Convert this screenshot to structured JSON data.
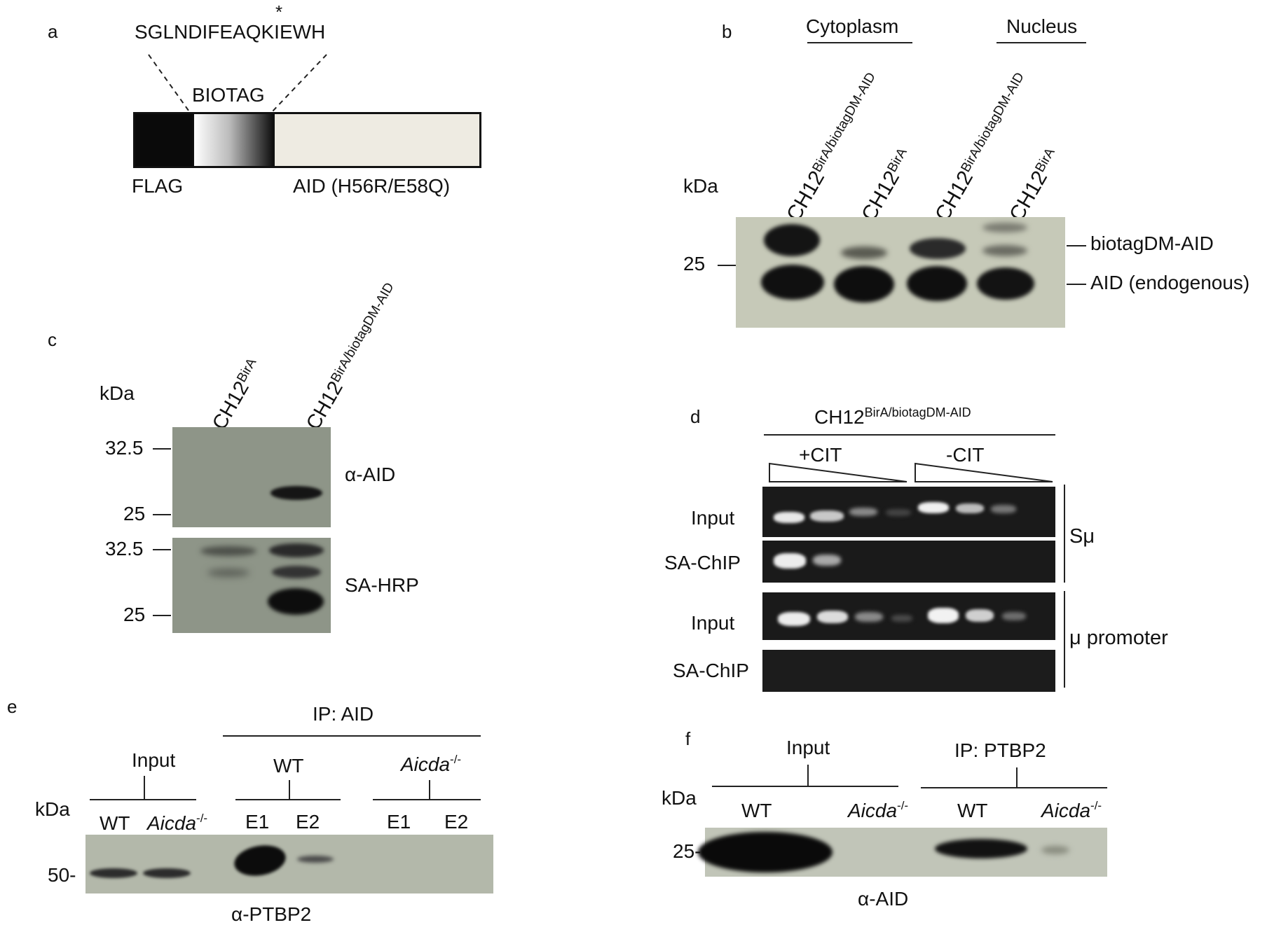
{
  "panel_letters": {
    "a": "a",
    "b": "b",
    "c": "c",
    "d": "d",
    "e": "e",
    "f": "f"
  },
  "panel_a": {
    "sequence": "SGLNDIFEAQKIEWH",
    "asterisk": "*",
    "tag_label": "BIOTAG",
    "flag_label": "FLAG",
    "aid_label": "AID (H56R/E58Q)"
  },
  "panel_b": {
    "groups": [
      "Cytoplasm",
      "Nucleus"
    ],
    "lanes": [
      {
        "base": "CH12",
        "sup": "BirA/biotagDM-AID"
      },
      {
        "base": "CH12",
        "sup": "BirA"
      },
      {
        "base": "CH12",
        "sup": "BirA/biotagDM-AID"
      },
      {
        "base": "CH12",
        "sup": "BirA"
      }
    ],
    "kda": "kDa",
    "marker": "25",
    "bands": [
      "biotagDM-AID",
      "AID (endogenous)"
    ]
  },
  "panel_c": {
    "kda": "kDa",
    "lanes": [
      {
        "base": "CH12",
        "sup": "BirA"
      },
      {
        "base": "CH12",
        "sup": "BirA/biotagDM-AID"
      }
    ],
    "markers_top": [
      "32.5",
      "25"
    ],
    "markers_bottom": [
      "32.5",
      "25"
    ],
    "blot_labels": [
      "α-AID",
      "SA-HRP"
    ]
  },
  "panel_d": {
    "header_base": "CH12",
    "header_sup": "BirA/biotagDM-AID",
    "conditions": [
      "+CIT",
      "-CIT"
    ],
    "rows": [
      "Input",
      "SA-ChIP",
      "Input",
      "SA-ChIP"
    ],
    "regions": [
      "Sμ",
      "μ promoter"
    ]
  },
  "panel_e": {
    "ip": "IP: AID",
    "input": "Input",
    "wt": "WT",
    "aicda": "Aicda",
    "aicda_sup": "-/-",
    "kda": "kDa",
    "lanes": [
      "WT",
      "Aicda",
      "E1",
      "E2",
      "E1",
      "E2"
    ],
    "marker": "50-",
    "antibody": "α-PTBP2"
  },
  "panel_f": {
    "input": "Input",
    "ip": "IP: PTBP2",
    "kda": "kDa",
    "lanes": [
      "WT",
      "Aicda",
      "WT",
      "Aicda"
    ],
    "aicda_sup": "-/-",
    "marker": "25-",
    "antibody": "α-AID"
  }
}
